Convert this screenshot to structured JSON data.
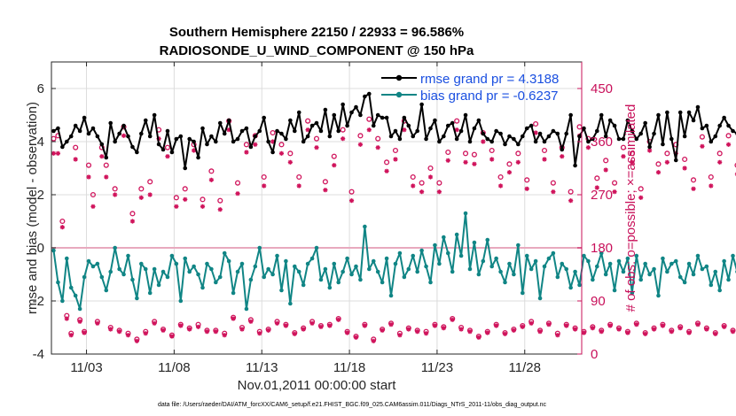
{
  "chart_data": {
    "type": "line",
    "title": "Southern Hemisphere 22150 / 22933 = 96.586%",
    "subtitle": "RADIOSONDE_U_WIND_COMPONENT @ 150 hPa",
    "xlabel": "Nov.01,2011 00:00:00 start",
    "ylabel": "rmse and bias (model - observation)",
    "y2label": "# of obs: o=possible; ×=assimilated",
    "xlim": [
      0.5,
      30.75
    ],
    "ylim": [
      -4,
      7
    ],
    "y2lim": [
      0,
      495
    ],
    "x_ticks": [
      2.5,
      7.5,
      12.5,
      17.5,
      22.5,
      27.5
    ],
    "x_tick_labels": [
      "11/03",
      "11/08",
      "11/13",
      "11/18",
      "11/23",
      "11/28"
    ],
    "y_ticks": [
      -4,
      -2,
      0,
      2,
      4,
      6
    ],
    "y_tick_labels": [
      "-4",
      "-2",
      "0",
      "2",
      "4",
      "6"
    ],
    "y2_ticks": [
      0,
      90,
      180,
      270,
      360,
      450
    ],
    "y2_tick_labels": [
      "0",
      "90",
      "180",
      "270",
      "360",
      "450"
    ],
    "x_step_days": 0.25,
    "x_start": 0.625,
    "zero_line": 0,
    "footnote": "data file: /Users/raeder/DAI/ATM_forcXX/CAM6_setup/f.e21.FHIST_BGC.f09_025.CAM6assim.011/Diags_NTrS_2011-11/obs_diag_output.nc",
    "series": [
      {
        "name": "rmse grand pr = 4.3188",
        "axis": "left",
        "color": "#000000",
        "values": [
          4.4,
          4.5,
          3.8,
          4.0,
          4.2,
          4.6,
          4.4,
          4.9,
          4.3,
          4.5,
          4.2,
          3.9,
          3.4,
          4.7,
          4.0,
          4.3,
          4.6,
          4.2,
          3.8,
          3.6,
          4.3,
          4.8,
          4.2,
          5.0,
          3.9,
          3.7,
          4.4,
          3.6,
          4.1,
          4.2,
          3.0,
          4.1,
          4.0,
          3.4,
          4.5,
          3.9,
          4.2,
          4.0,
          4.7,
          4.3,
          4.8,
          4.0,
          4.1,
          4.4,
          4.5,
          3.8,
          4.2,
          4.4,
          4.9,
          4.0,
          3.6,
          4.4,
          4.3,
          4.1,
          4.8,
          4.4,
          5.1,
          4.0,
          4.2,
          4.6,
          4.7,
          4.4,
          5.2,
          4.2,
          5.0,
          4.4,
          5.4,
          4.6,
          5.1,
          5.3,
          5.0,
          5.7,
          5.8,
          4.6,
          5.0,
          4.9,
          4.9,
          4.2,
          4.4,
          4.1,
          4.9,
          4.6,
          4.2,
          4.4,
          5.4,
          4.1,
          4.5,
          4.8,
          4.0,
          4.2,
          4.6,
          4.7,
          4.1,
          4.4,
          5.0,
          4.0,
          4.5,
          4.8,
          4.3,
          4.1,
          4.0,
          4.4,
          4.3,
          3.9,
          4.2,
          4.1,
          3.9,
          4.2,
          4.5,
          4.6,
          4.0,
          4.3,
          4.0,
          4.2,
          4.4,
          4.3,
          3.7,
          4.3,
          5.0,
          3.1,
          4.2,
          4.5,
          4.0,
          4.1,
          4.4,
          5.0,
          4.2,
          4.8,
          4.6,
          4.1,
          4.1,
          4.8,
          4.4,
          4.1,
          4.3,
          4.7,
          3.8,
          4.3,
          5.0,
          3.9,
          5.1,
          4.1,
          3.3,
          5.1,
          4.2,
          5.1,
          4.8,
          5.3,
          4.5,
          4.6,
          4.0,
          4.2,
          4.6,
          4.9,
          4.6,
          4.4,
          4.3,
          4.6,
          4.0,
          4.3,
          4.1,
          4.4,
          4.7,
          4.2,
          4.4,
          4.5,
          3.8,
          4.8,
          4.6,
          4.3,
          4.2,
          3.9,
          4.1,
          4.5,
          4.3,
          4.7,
          4.0,
          4.8,
          4.4,
          4.2,
          3.6,
          4.9,
          3.8,
          4.3,
          4.5,
          4.6,
          4.3,
          4.1,
          4.7,
          4.4,
          4.6,
          4.9,
          4.0,
          4.2,
          4.4,
          3.7,
          4.1,
          4.4,
          4.5,
          3.9,
          4.4,
          4.3,
          4.1,
          4.4,
          4.5,
          4.1,
          4.6,
          4.2,
          3.7,
          4.1,
          3.4,
          3.6,
          4.2,
          4.5,
          4.3,
          4.1,
          3.9,
          4.4,
          4.3,
          4.5,
          4.1,
          4.2,
          4.6,
          4.7,
          3.8,
          4.5,
          5.3,
          4.4,
          5.0,
          4.0,
          4.7,
          4.0,
          3.8,
          4.3,
          4.0,
          4.4,
          4.1,
          4.5,
          4.3,
          4.6,
          4.2,
          4.4,
          4.8,
          4.0,
          4.4,
          4.1,
          4.5,
          4.2,
          4.6,
          4.5,
          4.3,
          4.8,
          4.4,
          4.7,
          4.5,
          4.6,
          4.7
        ]
      },
      {
        "name": "bias grand pr = -0.6237",
        "axis": "left",
        "color": "#108585",
        "values": [
          -0.1,
          -1.3,
          -2.0,
          -0.4,
          -1.5,
          -1.8,
          -2.3,
          -1.1,
          -0.5,
          -0.7,
          -0.6,
          -1.1,
          -1.6,
          -0.9,
          0.0,
          -0.8,
          -1.0,
          -0.3,
          -1.2,
          -1.9,
          -0.6,
          -0.8,
          -1.7,
          -0.8,
          -1.4,
          -0.9,
          -1.1,
          -0.3,
          -0.6,
          -2.0,
          -0.4,
          -0.9,
          -0.7,
          -1.0,
          -1.5,
          -0.6,
          -0.8,
          -1.3,
          -1.1,
          -0.2,
          -0.5,
          -1.7,
          -0.9,
          -0.6,
          -2.3,
          -1.2,
          -0.7,
          0.0,
          -1.1,
          -0.8,
          -1.0,
          -0.3,
          -1.6,
          -0.5,
          -2.1,
          -0.7,
          -0.9,
          -1.4,
          -0.6,
          -0.4,
          0.0,
          -1.2,
          -0.8,
          -1.5,
          -0.6,
          -1.3,
          -0.9,
          -0.4,
          -1.0,
          -0.7,
          -1.2,
          0.8,
          -0.8,
          -0.5,
          -0.9,
          -1.3,
          -0.4,
          -1.8,
          -0.6,
          -0.2,
          -1.1,
          -0.8,
          -0.3,
          -0.9,
          -0.1,
          -0.7,
          -1.3,
          0.1,
          -0.6,
          0.4,
          -0.2,
          -0.9,
          0.5,
          -0.3,
          1.3,
          -0.8,
          0.2,
          -1.0,
          -0.5,
          0.3,
          -0.7,
          -0.4,
          -0.9,
          -1.3,
          -0.6,
          -1.0,
          0.1,
          -1.7,
          -0.3,
          -0.8,
          -0.5,
          -1.9,
          -0.7,
          -0.4,
          -0.2,
          -1.1,
          -0.6,
          -0.8,
          -1.5,
          -0.9,
          -1.4,
          -0.3,
          -0.5,
          -1.2,
          -0.7,
          -0.2,
          -1.0,
          -0.6,
          -1.6,
          -0.5,
          -0.9,
          -0.4,
          -1.7,
          -0.3,
          -1.2,
          -0.6,
          -1.0,
          -0.8,
          -1.8,
          -0.4,
          -0.9,
          -0.6,
          -0.5,
          -1.1,
          -1.3,
          -0.6,
          -1.0,
          -0.3,
          -0.8,
          -0.7,
          -1.4,
          -0.9,
          -1.6,
          -0.5,
          -1.2,
          -0.3,
          -0.9,
          -0.4,
          -1.6,
          -1.0,
          -0.5,
          -0.1,
          -0.8,
          -1.0,
          -1.7,
          -0.4,
          -1.1,
          -1.4,
          -0.6,
          -1.9,
          -0.5,
          -0.3,
          -0.9,
          -2.2,
          -1.3,
          -0.5,
          -0.4,
          -1.7,
          -0.9,
          -1.2,
          -0.6,
          -0.3,
          -1.5,
          -0.5,
          -1.0,
          -0.7,
          -1.4,
          -0.8,
          -0.4,
          -1.1,
          -1.6,
          -0.2,
          -0.8,
          -1.3,
          -0.5,
          -0.7,
          -2.2,
          -0.9,
          -0.4,
          -1.3,
          -0.8,
          -1.0,
          -0.5,
          -1.8,
          -0.6,
          -1.2,
          -0.5,
          -0.8,
          -0.4,
          -1.1,
          -0.7,
          -1.6,
          -0.3,
          -0.7,
          -0.4,
          -2.8,
          -1.2,
          -0.9,
          -2.6,
          -1.8,
          -0.4,
          -3.1,
          -0.2,
          -1.3,
          -0.7,
          -0.6,
          -2.5,
          -1.4,
          -0.8,
          -2.6,
          -0.6,
          -0.9,
          -1.3,
          -0.7,
          -1.0,
          -1.5,
          -0.5,
          -0.9,
          -1.7,
          -0.4,
          -0.8,
          -1.2,
          -0.6,
          -1.5,
          -0.9,
          -2.2,
          -0.4,
          -1.0,
          -1.8,
          -0.6,
          -0.2,
          -1.5,
          -1.0,
          -1.7,
          -0.1,
          -0.8,
          -1.6
        ]
      },
      {
        "name": "possible (o)",
        "axis": "right",
        "color": "#d0145c",
        "marker": "o",
        "values": [
          365,
          370,
          225,
          65,
          35,
          350,
          58,
          38,
          320,
          270,
          55,
          350,
          320,
          45,
          280,
          40,
          385,
          35,
          238,
          25,
          280,
          38,
          292,
          55,
          380,
          42,
          350,
          32,
          265,
          50,
          280,
          44,
          355,
          50,
          262,
          40,
          310,
          40,
          260,
          35,
          395,
          62,
          290,
          45,
          355,
          58,
          370,
          38,
          300,
          42,
          375,
          55,
          355,
          50,
          340,
          36,
          300,
          44,
          395,
          55,
          365,
          48,
          292,
          50,
          335,
          60,
          380,
          38,
          275,
          30,
          370,
          50,
          398,
          25,
          365,
          42,
          325,
          52,
          345,
          35,
          395,
          44,
          300,
          40,
          290,
          38,
          315,
          50,
          290,
          46,
          342,
          60,
          395,
          45,
          340,
          40,
          338,
          30,
          375,
          38,
          345,
          50,
          300,
          36,
          322,
          42,
          340,
          48,
          295,
          55,
          390,
          40,
          345,
          52,
          290,
          35,
          350,
          50,
          275,
          44,
          385,
          38,
          365,
          46,
          298,
          40,
          328,
          50,
          290,
          44,
          350,
          38,
          340,
          52,
          280,
          36,
          360,
          44,
          322,
          50,
          340,
          40,
          355,
          46,
          330,
          38,
          295,
          52,
          368,
          44,
          300,
          36,
          340,
          48,
          370,
          40,
          320,
          50,
          295,
          44,
          340,
          38,
          352,
          42,
          325,
          46,
          372,
          40,
          300,
          36,
          335,
          50,
          330,
          44,
          285,
          40,
          350,
          48,
          320,
          42,
          340,
          38,
          300,
          46,
          352,
          44,
          320,
          40,
          290,
          38,
          318,
          48,
          350,
          42,
          300,
          40,
          330,
          46,
          290,
          38,
          320,
          44,
          345,
          40,
          300,
          36,
          355,
          42,
          330,
          46,
          320,
          40,
          290,
          44,
          350,
          38,
          325,
          42,
          315,
          46,
          350,
          38,
          340,
          44,
          280,
          36,
          300,
          48,
          312,
          40,
          338,
          44,
          325,
          42,
          300,
          38,
          340,
          46,
          345,
          40,
          360,
          36,
          330,
          44,
          290,
          38,
          340,
          42,
          300,
          46,
          275,
          40,
          340,
          44,
          345,
          38,
          338,
          40,
          250,
          36,
          345,
          42
        ]
      },
      {
        "name": "assimilated (×)",
        "axis": "right",
        "color": "#d0145c",
        "marker": "*",
        "values": [
          340,
          340,
          215,
          60,
          32,
          330,
          55,
          36,
          300,
          250,
          52,
          335,
          300,
          42,
          270,
          38,
          370,
          32,
          225,
          22,
          265,
          35,
          270,
          52,
          365,
          40,
          335,
          30,
          250,
          48,
          262,
          42,
          345,
          46,
          250,
          38,
          295,
          38,
          245,
          32,
          380,
          60,
          272,
          42,
          342,
          55,
          355,
          35,
          285,
          40,
          360,
          52,
          340,
          48,
          325,
          34,
          285,
          42,
          380,
          52,
          350,
          46,
          278,
          48,
          320,
          58,
          365,
          36,
          260,
          28,
          355,
          48,
          380,
          22,
          350,
          40,
          310,
          50,
          330,
          32,
          380,
          42,
          285,
          38,
          275,
          35,
          300,
          48,
          275,
          44,
          328,
          58,
          380,
          42,
          325,
          38,
          322,
          28,
          360,
          36,
          330,
          48,
          285,
          34,
          308,
          40,
          325,
          46,
          280,
          52,
          375,
          38,
          330,
          50,
          275,
          32,
          335,
          48,
          260,
          42,
          370,
          36,
          350,
          44,
          282,
          38,
          312,
          48,
          275,
          42,
          335,
          36,
          325,
          50,
          265,
          34,
          345,
          42,
          308,
          48,
          325,
          38,
          340,
          44,
          315,
          36,
          280,
          50,
          352,
          42,
          285,
          34,
          325,
          46,
          355,
          38,
          305,
          48,
          280,
          42,
          325,
          36,
          338,
          40,
          310,
          44,
          358,
          38,
          285,
          34,
          320,
          48,
          315,
          42,
          270,
          38,
          335,
          46,
          305,
          40,
          325,
          36,
          285,
          44,
          338,
          42,
          305,
          38,
          275,
          36,
          302,
          46,
          335,
          40,
          285,
          38,
          315,
          44,
          275,
          36,
          305,
          42,
          330,
          38,
          285,
          34,
          340,
          40,
          315,
          44,
          305,
          38,
          275,
          42,
          335,
          36,
          310,
          40,
          300,
          44,
          335,
          36,
          325,
          42,
          265,
          34,
          285,
          46,
          298,
          38,
          323,
          42,
          310,
          40,
          285,
          36,
          325,
          44,
          330,
          38,
          345,
          34,
          315,
          42,
          275,
          36,
          325,
          40,
          285,
          44,
          260,
          38,
          325,
          42,
          330,
          36,
          322,
          38,
          236,
          6,
          330,
          40
        ]
      }
    ]
  }
}
